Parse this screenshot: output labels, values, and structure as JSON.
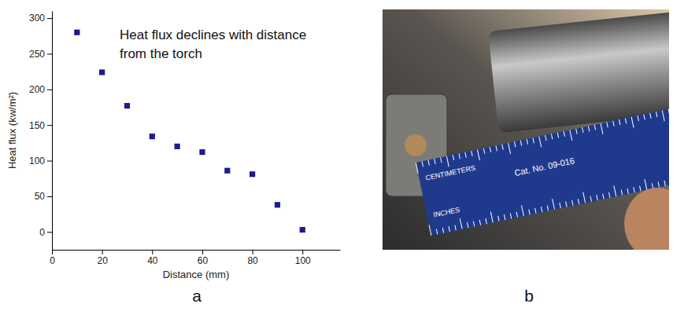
{
  "chart_data": {
    "type": "scatter",
    "panel_label": "a",
    "annotation": "Heat flux declines with distance from the torch",
    "x_label": "Distance (mm)",
    "y_label": "Heat flux (kw/m²)",
    "x": [
      10,
      20,
      30,
      40,
      50,
      60,
      70,
      80,
      90,
      100
    ],
    "values": [
      280,
      224,
      177,
      134,
      120,
      112,
      86,
      81,
      38,
      3
    ],
    "color": "#1c1c8c",
    "marker": "square",
    "grid": false,
    "xlim": [
      0,
      115
    ],
    "ylim": [
      -25,
      310
    ],
    "xticks": [
      0,
      20,
      40,
      60,
      80,
      100
    ],
    "yticks": [
      0,
      50,
      100,
      150,
      200,
      250,
      300
    ]
  },
  "photo": {
    "panel_label": "b",
    "texts": [
      "CENTIMETERS",
      "Cat. No. 09-016",
      "INCHES"
    ]
  }
}
